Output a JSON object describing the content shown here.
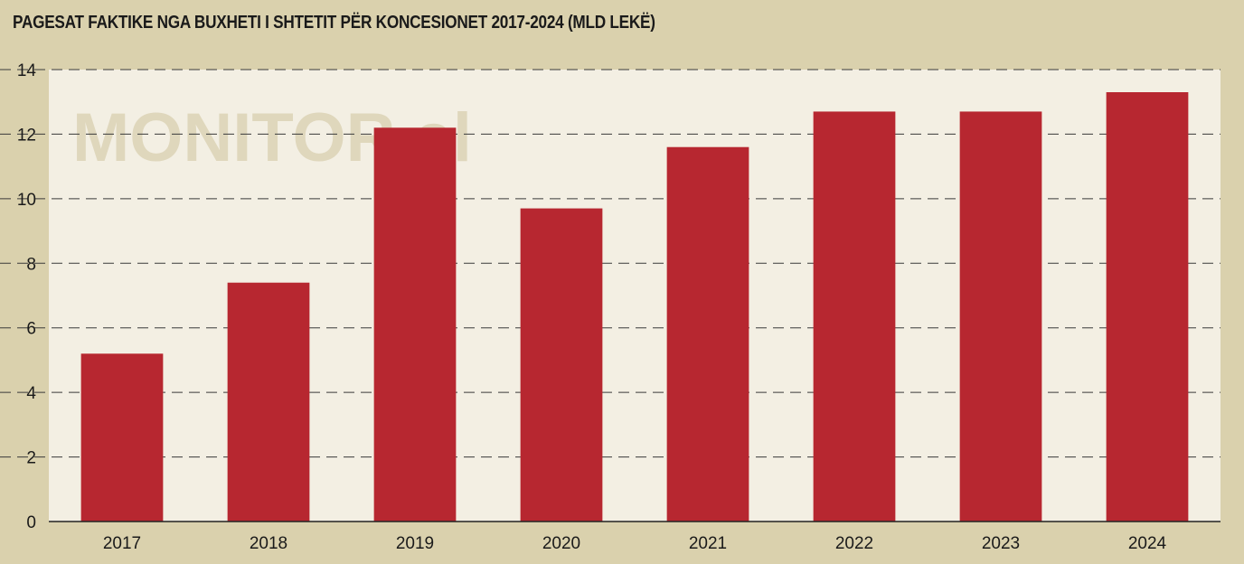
{
  "chart_data": {
    "type": "bar",
    "title": "PAGESAT FAKTIKE NGA BUXHETI I SHTETIT PËR KONCESIONET 2017-2024 (MLD LEKË)",
    "categories": [
      "2017",
      "2018",
      "2019",
      "2020",
      "2021",
      "2022",
      "2023",
      "2024"
    ],
    "values": [
      5.2,
      7.4,
      12.2,
      9.7,
      11.6,
      12.7,
      12.7,
      13.3
    ],
    "ylim": [
      0,
      14
    ],
    "yticks": [
      0,
      2,
      4,
      6,
      8,
      10,
      12,
      14
    ],
    "xlabel": "",
    "ylabel": "",
    "grid": true,
    "bar_color": "#b72730",
    "plot_background": "#f3efe3",
    "page_background": "#dad1ad"
  },
  "watermark": "MONITOR.al"
}
